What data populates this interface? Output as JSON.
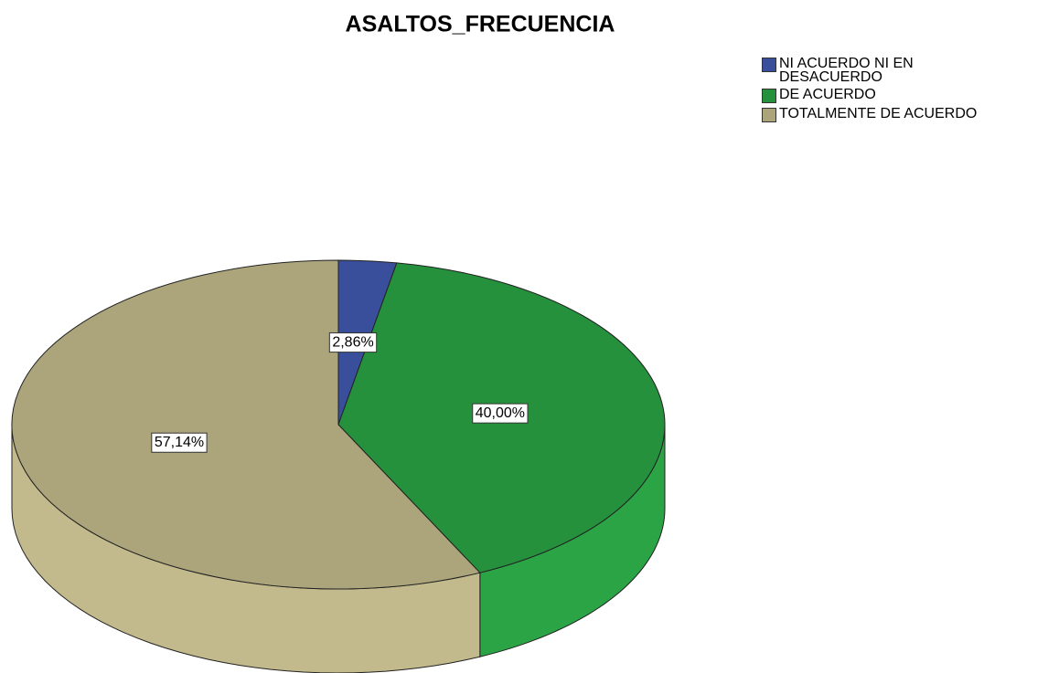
{
  "chart_data": {
    "type": "pie",
    "title": "ASALTOS_FRECUENCIA",
    "categories": [
      "NI ACUERDO NI EN DESACUERDO",
      "DE ACUERDO",
      "TOTALMENTE DE ACUERDO"
    ],
    "values": [
      2.86,
      40.0,
      57.14
    ],
    "value_labels": [
      "2,86%",
      "40,00%",
      "57,14%"
    ],
    "colors": [
      "#3a4f9b",
      "#26913d",
      "#aca57c"
    ],
    "legend": "top-right"
  }
}
